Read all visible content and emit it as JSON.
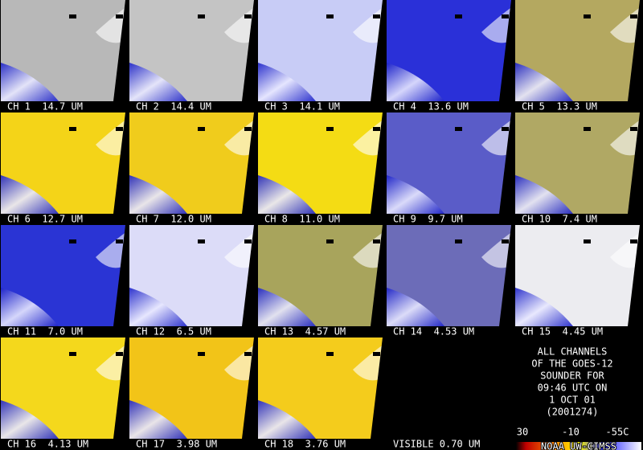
{
  "panels": [
    {
      "label": "CH 1  14.7 UM",
      "color": "#b8b8b8"
    },
    {
      "label": "CH 2  14.4 UM",
      "color": "#c4c4c4"
    },
    {
      "label": "CH 3  14.1 UM",
      "color": "#c8ccf6"
    },
    {
      "label": "CH 4  13.6 UM",
      "color": "#2a30d8"
    },
    {
      "label": "CH 5  13.3 UM",
      "color": "#b4a860"
    },
    {
      "label": "CH 6  12.7 UM",
      "color": "#f4d418"
    },
    {
      "label": "CH 7  12.0 UM",
      "color": "#f0cc1c"
    },
    {
      "label": "CH 8  11.0 UM",
      "color": "#f4dc14"
    },
    {
      "label": "CH 9  9.7 UM",
      "color": "#5a5cc8"
    },
    {
      "label": "CH 10  7.4 UM",
      "color": "#b0a864"
    },
    {
      "label": "CH 11  7.0 UM",
      "color": "#2a34d4"
    },
    {
      "label": "CH 12  6.5 UM",
      "color": "#dcdcf8"
    },
    {
      "label": "CH 13  4.57 UM",
      "color": "#a8a45c"
    },
    {
      "label": "CH 14  4.53 UM",
      "color": "#6c6cb8"
    },
    {
      "label": "CH 15  4.45 UM",
      "color": "#ececf0"
    },
    {
      "label": "CH 16  4.13 UM",
      "color": "#f4d81c"
    },
    {
      "label": "CH 17  3.98 UM",
      "color": "#f2c418"
    },
    {
      "label": "CH 18  3.76 UM",
      "color": "#f4cc1c"
    },
    {
      "label": "VISIBLE 0.70 UM",
      "color": "#000000"
    }
  ],
  "info": {
    "lines": [
      "ALL CHANNELS",
      "OF THE GOES-12",
      "SOUNDER FOR",
      "09:46 UTC ON",
      "1 OCT 01",
      "(2001274)"
    ],
    "scale_labels": [
      "30",
      "-10",
      "-55C"
    ],
    "credit": "NOAA UW-CIMSS"
  }
}
